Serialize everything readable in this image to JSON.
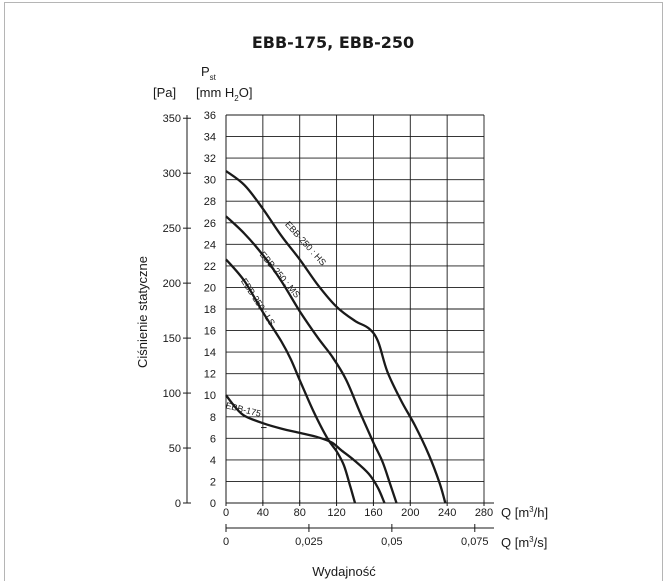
{
  "chart_data": {
    "type": "line",
    "title": "EBB-175, EBB-250",
    "ylabel": "Ciśnienie statyczne",
    "xlabel": "Wydajność",
    "y_symbol": "P",
    "y_symbol_sub": "st",
    "y_unit_pa": "[Pa]",
    "y_unit_mm": "[mm H",
    "y_unit_mm_sub": "2",
    "y_unit_mm_end": "O]",
    "x_unit_m3h": "Q [m",
    "x_unit_m3h_sup": "3",
    "x_unit_m3h_end": "/h]",
    "x_unit_m3s": "Q [m",
    "x_unit_m3s_sup": "3",
    "x_unit_m3s_end": "/s]",
    "xlim": [
      0,
      280
    ],
    "ylim": [
      0,
      36
    ],
    "grid": true,
    "x_ticks": [
      "0",
      "40",
      "80",
      "120",
      "160",
      "200",
      "240",
      "280"
    ],
    "x2_ticks": [
      {
        "label": "0",
        "at": 0
      },
      {
        "label": "0,025",
        "at": 90
      },
      {
        "label": "0,05",
        "at": 180
      },
      {
        "label": "0,075",
        "at": 270
      }
    ],
    "y_ticks": [
      "0",
      "2",
      "4",
      "6",
      "8",
      "10",
      "12",
      "14",
      "16",
      "18",
      "20",
      "22",
      "24",
      "26",
      "28",
      "30",
      "32",
      "34",
      "36"
    ],
    "pa_ticks": [
      {
        "label": "0",
        "at": 0
      },
      {
        "label": "50",
        "at": 5.1
      },
      {
        "label": "100",
        "at": 10.2
      },
      {
        "label": "150",
        "at": 15.3
      },
      {
        "label": "200",
        "at": 20.4
      },
      {
        "label": "250",
        "at": 25.5
      },
      {
        "label": "300",
        "at": 30.6
      },
      {
        "label": "350",
        "at": 35.7
      }
    ],
    "series": [
      {
        "name": "EBB-250 : HS",
        "x": [
          0,
          20,
          40,
          60,
          80,
          100,
          120,
          140,
          155,
          165,
          175,
          190,
          205,
          220,
          232,
          238
        ],
        "y": [
          30.8,
          29.5,
          27.3,
          24.8,
          22.6,
          20.2,
          18.2,
          16.9,
          16.2,
          15.0,
          12.2,
          9.5,
          7.2,
          4.5,
          1.8,
          0
        ]
      },
      {
        "name": "EBB-250 : MS",
        "x": [
          0,
          20,
          40,
          60,
          80,
          100,
          115,
          130,
          145,
          160,
          170,
          178,
          185
        ],
        "y": [
          26.6,
          25.0,
          23.0,
          20.6,
          17.8,
          15.3,
          13.6,
          11.5,
          8.5,
          5.6,
          3.8,
          1.8,
          0
        ]
      },
      {
        "name": "EBB-250 : LS",
        "x": [
          0,
          20,
          40,
          60,
          70,
          80,
          95,
          110,
          120,
          128,
          135,
          140
        ],
        "y": [
          22.6,
          20.6,
          17.7,
          15.0,
          13.4,
          11.4,
          8.5,
          6.0,
          4.8,
          3.5,
          1.5,
          0
        ]
      },
      {
        "name": "EBB-175",
        "x": [
          0,
          10,
          20,
          40,
          60,
          80,
          100,
          115,
          125,
          140,
          155,
          165,
          172
        ],
        "y": [
          10.0,
          8.9,
          8.1,
          7.4,
          6.9,
          6.5,
          6.1,
          5.6,
          4.9,
          3.9,
          2.7,
          1.4,
          0
        ]
      }
    ],
    "annotations": [
      {
        "text": "EBB-250 : HS",
        "x": 84,
        "y": 23.9,
        "angle": 48
      },
      {
        "text": "EBB-250 : MS",
        "x": 56,
        "y": 21.0,
        "angle": 50
      },
      {
        "text": "EBB-250 : LS",
        "x": 32,
        "y": 18.5,
        "angle": 57
      },
      {
        "text": "EBB-175",
        "x": 18,
        "y": 8.4,
        "angle": 14
      }
    ]
  }
}
